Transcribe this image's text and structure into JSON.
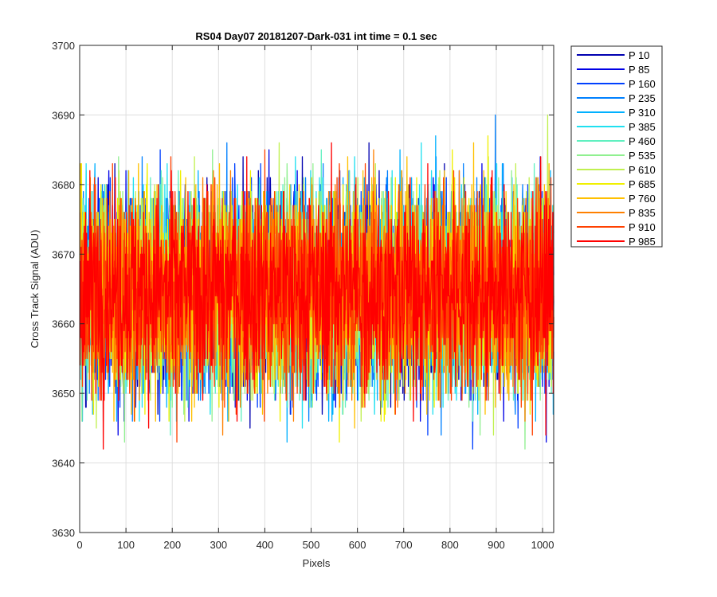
{
  "chart_data": {
    "type": "line",
    "title": "RS04 Day07 20181207-Dark-031 int time = 0.1 sec",
    "xlabel": "Pixels",
    "ylabel": "Cross Track Signal (ADU)",
    "xlim": [
      0,
      1024
    ],
    "ylim": [
      3630,
      3700
    ],
    "xticks": [
      "0",
      "100",
      "200",
      "300",
      "400",
      "500",
      "600",
      "700",
      "800",
      "900",
      "1000"
    ],
    "yticks": [
      "3630",
      "3640",
      "3650",
      "3660",
      "3670",
      "3680",
      "3690",
      "3700"
    ],
    "grid": true,
    "legend_position": "outside-top-right",
    "noise_model": {
      "mean": 3665,
      "range_min": 3637,
      "range_max": 3692
    },
    "series": [
      {
        "name": "P 10",
        "color": "#0000b0"
      },
      {
        "name": "P 85",
        "color": "#0000e6"
      },
      {
        "name": "P 160",
        "color": "#0040ff"
      },
      {
        "name": "P 235",
        "color": "#0080ff"
      },
      {
        "name": "P 310",
        "color": "#00b0ff"
      },
      {
        "name": "P 385",
        "color": "#20e0f0"
      },
      {
        "name": "P 460",
        "color": "#60f0c0"
      },
      {
        "name": "P 535",
        "color": "#90f090"
      },
      {
        "name": "P 610",
        "color": "#c0f050"
      },
      {
        "name": "P 685",
        "color": "#f0f000"
      },
      {
        "name": "P 760",
        "color": "#ffc000"
      },
      {
        "name": "P 835",
        "color": "#ff8000"
      },
      {
        "name": "P 910",
        "color": "#ff4000"
      },
      {
        "name": "P 985",
        "color": "#ff0000"
      }
    ]
  }
}
